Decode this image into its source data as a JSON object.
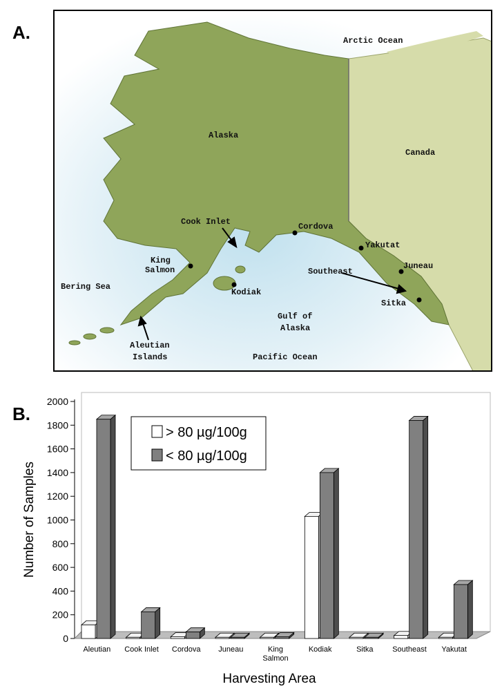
{
  "panel_labels": {
    "a": "A.",
    "b": "B."
  },
  "map": {
    "arctic_ocean": "Arctic Ocean",
    "alaska": "Alaska",
    "canada": "Canada",
    "cook_inlet": "Cook Inlet",
    "cordova": "Cordova",
    "yakutat": "Yakutat",
    "juneau": "Juneau",
    "king_salmon": [
      "King",
      "Salmon"
    ],
    "southeast": "Southeast",
    "bering_sea": "Bering Sea",
    "kodiak": "Kodiak",
    "sitka": "Sitka",
    "gulf_of_alaska": [
      "Gulf of",
      "Alaska"
    ],
    "aleutian_islands": [
      "Aleutian",
      "Islands"
    ],
    "pacific_ocean": "Pacific Ocean"
  },
  "chart_data": {
    "type": "bar",
    "x_label": "Harvesting Area",
    "y_label": "Number of Samples",
    "categories": [
      "Aleutian",
      "Cook Inlet",
      "Cordova",
      "Juneau",
      "King\nSalmon",
      "Kodiak",
      "Sitka",
      "Southeast",
      "Yakutat"
    ],
    "series": [
      {
        "name": "> 80 µg/100g",
        "color": "#ffffff",
        "values": [
          115,
          10,
          15,
          10,
          10,
          1030,
          10,
          25,
          10
        ]
      },
      {
        "name": "< 80 µg/100g",
        "color": "#808080",
        "values": [
          1850,
          225,
          55,
          10,
          15,
          1400,
          10,
          1840,
          455
        ]
      }
    ],
    "ylim": [
      0,
      2000
    ],
    "yticks": [
      0,
      200,
      400,
      600,
      800,
      1000,
      1200,
      1400,
      1600,
      1800,
      2000
    ],
    "legend": "upper-left"
  }
}
